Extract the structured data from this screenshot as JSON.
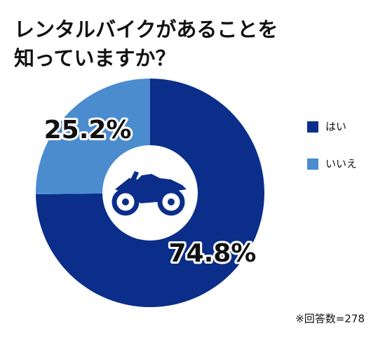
{
  "chart_data": {
    "type": "donut",
    "title": [
      "レンタルバイクがあることを",
      "知っていますか？"
    ],
    "categories": [
      "はい",
      "いいえ"
    ],
    "values": [
      74.8,
      25.2
    ],
    "value_labels": [
      "74.8%",
      "25.2%"
    ],
    "colors": [
      "#0a2e8a",
      "#4b8ccf"
    ],
    "note": "※回答数=278"
  }
}
